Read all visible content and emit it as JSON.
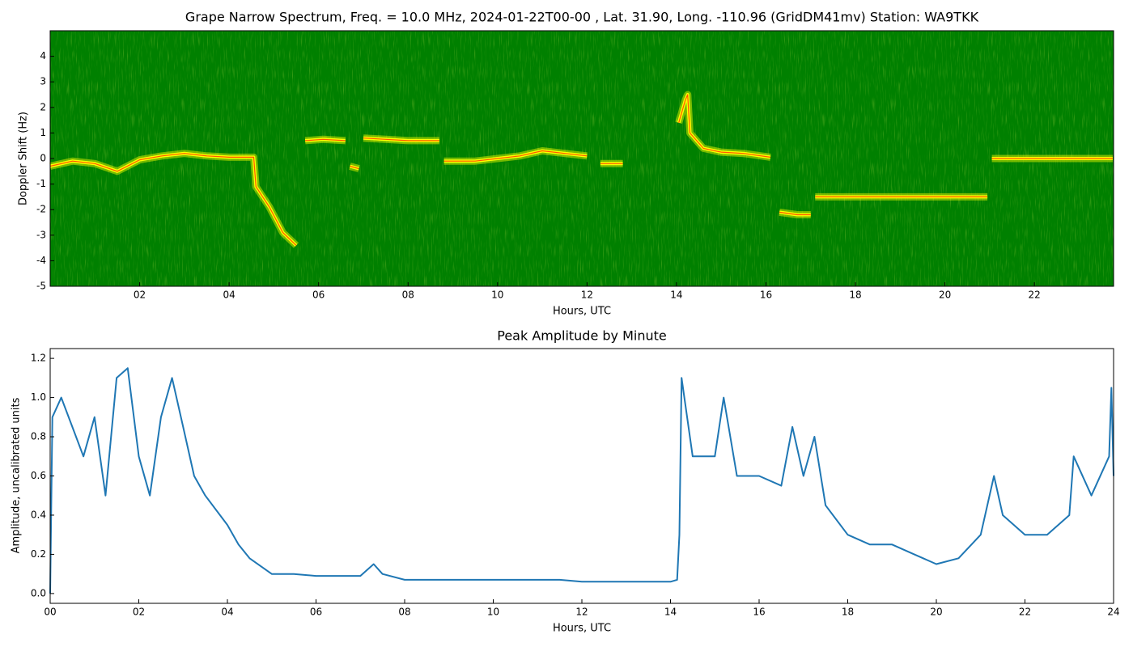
{
  "chart_data": [
    {
      "type": "spectrogram",
      "title": "Grape Narrow Spectrum, Freq. = 10.0 MHz, 2024-01-22T00-00 , Lat.  31.90, Long. -110.96 (GridDM41mv) Station: WA9TKK",
      "xlabel": "Hours, UTC",
      "ylabel": "Doppler Shift (Hz)",
      "xlim": [
        0,
        23.77
      ],
      "ylim": [
        -5,
        5
      ],
      "xticks": [
        {
          "value": 2,
          "label": "02"
        },
        {
          "value": 4,
          "label": "04"
        },
        {
          "value": 6,
          "label": "06"
        },
        {
          "value": 8,
          "label": "08"
        },
        {
          "value": 10,
          "label": "10"
        },
        {
          "value": 12,
          "label": "12"
        },
        {
          "value": 14,
          "label": "14"
        },
        {
          "value": 16,
          "label": "16"
        },
        {
          "value": 18,
          "label": "18"
        },
        {
          "value": 20,
          "label": "20"
        },
        {
          "value": 22,
          "label": "22"
        }
      ],
      "yticks": [
        -5,
        -4,
        -3,
        -2,
        -1,
        0,
        1,
        2,
        3,
        4
      ],
      "background": "#008000",
      "color": "#ffff00",
      "core_color": "#ff3000",
      "x": [
        0,
        0.5,
        1,
        1.5,
        2,
        2.5,
        3,
        3.5,
        4,
        4.55,
        4.6,
        4.9,
        5.2,
        5.5,
        5.55,
        5.7,
        6.1,
        6.6,
        6.65,
        6.7,
        6.9,
        6.95,
        7,
        7.5,
        8,
        8.7,
        8.75,
        8.8,
        9.5,
        10,
        10.5,
        11,
        11.5,
        12,
        12.2,
        12.3,
        12.8,
        13,
        14.05,
        14.2,
        14.25,
        14.3,
        14.6,
        15,
        15.5,
        16.1,
        16.2,
        16.3,
        16.7,
        17,
        17.05,
        17.1,
        18,
        19,
        20,
        20.95,
        21,
        21.05,
        22,
        23,
        23.75
      ],
      "values": [
        -0.3,
        -0.1,
        -0.2,
        -0.5,
        -0.05,
        0.1,
        0.2,
        0.1,
        0.05,
        0.05,
        -1.1,
        -1.9,
        -2.9,
        -3.4,
        null,
        0.7,
        0.75,
        0.7,
        null,
        -0.3,
        -0.4,
        null,
        0.8,
        0.75,
        0.7,
        0.7,
        null,
        -0.1,
        -0.1,
        0,
        0.1,
        0.3,
        0.2,
        0.1,
        null,
        -0.2,
        -0.2,
        null,
        1.4,
        2.3,
        2.5,
        1.0,
        0.4,
        0.25,
        0.2,
        0.05,
        null,
        -2.1,
        -2.2,
        -2.2,
        null,
        -1.5,
        -1.5,
        -1.5,
        -1.5,
        -1.5,
        null,
        0,
        0,
        0,
        0
      ]
    },
    {
      "type": "line",
      "title": "Peak Amplitude by Minute",
      "xlabel": "Hours, UTC",
      "ylabel": "Amplitude, uncalibrated units",
      "xlim": [
        0,
        24
      ],
      "ylim": [
        -0.05,
        1.25
      ],
      "xticks": [
        {
          "value": 0,
          "label": "00"
        },
        {
          "value": 2,
          "label": "02"
        },
        {
          "value": 4,
          "label": "04"
        },
        {
          "value": 6,
          "label": "06"
        },
        {
          "value": 8,
          "label": "08"
        },
        {
          "value": 10,
          "label": "10"
        },
        {
          "value": 12,
          "label": "12"
        },
        {
          "value": 14,
          "label": "14"
        },
        {
          "value": 16,
          "label": "16"
        },
        {
          "value": 18,
          "label": "18"
        },
        {
          "value": 20,
          "label": "20"
        },
        {
          "value": 22,
          "label": "22"
        },
        {
          "value": 24,
          "label": "24"
        }
      ],
      "yticks": [
        {
          "value": 0,
          "label": "0.0"
        },
        0.2,
        0.4,
        0.6,
        0.8,
        {
          "value": 1,
          "label": "1.0"
        },
        1.2
      ],
      "color": "#1f77b4",
      "x": [
        0,
        0.05,
        0.25,
        0.5,
        0.75,
        1,
        1.25,
        1.5,
        1.75,
        2,
        2.25,
        2.5,
        2.75,
        3,
        3.25,
        3.5,
        4,
        4.25,
        4.5,
        5,
        5.5,
        6,
        6.5,
        7,
        7.3,
        7.5,
        8,
        8.5,
        9,
        9.5,
        10,
        10.5,
        11,
        11.5,
        12,
        12.5,
        13,
        13.5,
        14,
        14.15,
        14.2,
        14.25,
        14.5,
        15,
        15.2,
        15.5,
        16,
        16.5,
        16.75,
        17,
        17.25,
        17.5,
        18,
        18.5,
        19,
        19.5,
        20,
        20.5,
        21,
        21.3,
        21.5,
        22,
        22.5,
        23,
        23.1,
        23.5,
        23.9,
        23.95,
        24
      ],
      "values": [
        0.0,
        0.9,
        1.0,
        0.85,
        0.7,
        0.9,
        0.5,
        1.1,
        1.15,
        0.7,
        0.5,
        0.9,
        1.1,
        0.85,
        0.6,
        0.5,
        0.35,
        0.25,
        0.18,
        0.1,
        0.1,
        0.09,
        0.09,
        0.09,
        0.15,
        0.1,
        0.07,
        0.07,
        0.07,
        0.07,
        0.07,
        0.07,
        0.07,
        0.07,
        0.06,
        0.06,
        0.06,
        0.06,
        0.06,
        0.07,
        0.3,
        1.1,
        0.7,
        0.7,
        1.0,
        0.6,
        0.6,
        0.55,
        0.85,
        0.6,
        0.8,
        0.45,
        0.3,
        0.25,
        0.25,
        0.2,
        0.15,
        0.18,
        0.3,
        0.6,
        0.4,
        0.3,
        0.3,
        0.4,
        0.7,
        0.5,
        0.7,
        1.05,
        0.6
      ]
    }
  ]
}
